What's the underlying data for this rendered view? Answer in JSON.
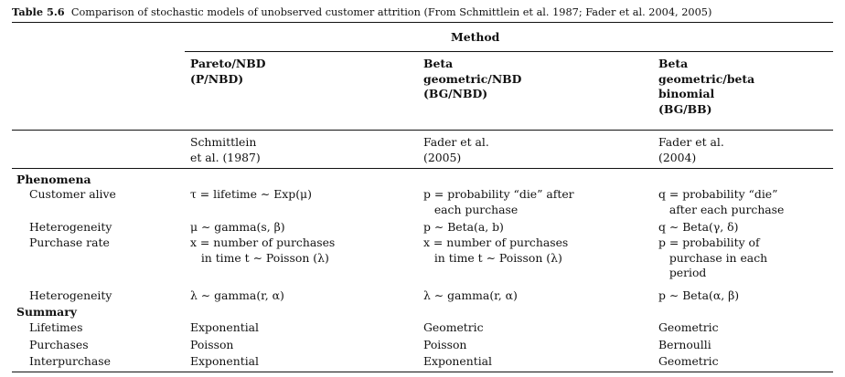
{
  "caption": {
    "label": "Table 5.6",
    "text": "Comparison of stochastic models of unobserved customer attrition (From Schmittlein et al. 1987; Fader et al. 2004, 2005)"
  },
  "header": {
    "method": "Method",
    "models": [
      {
        "name": "Pareto/NBD\n(P/NBD)",
        "source": "Schmittlein\net al. (1987)"
      },
      {
        "name": "Beta\ngeometric/NBD\n(BG/NBD)",
        "source": "Fader et al.\n(2005)"
      },
      {
        "name": "Beta\ngeometric/beta\nbinomial\n(BG/BB)",
        "source": "Fader et al.\n(2004)"
      }
    ]
  },
  "sections": [
    {
      "title": "Phenomena",
      "rows": [
        {
          "label": "Customer alive",
          "values": [
            "τ = lifetime ∼ Exp(μ)",
            "p = probability “die” after\n   each purchase",
            "q = probability “die”\n   after each purchase"
          ]
        },
        {
          "label": "Heterogeneity",
          "values": [
            "μ ∼ gamma(s, β)",
            "p ∼ Beta(a, b)",
            "q ∼ Beta(γ, δ)"
          ]
        },
        {
          "label": "Purchase rate",
          "values": [
            "x = number of purchases\n   in time t ∼ Poisson (λ)",
            "x = number of purchases\n   in time t ∼ Poisson (λ)",
            "p = probability of\n   purchase in each\n   period"
          ]
        },
        {
          "label": "Heterogeneity",
          "values": [
            "λ ∼ gamma(r, α)",
            "λ ∼ gamma(r, α)",
            "p ∼ Beta(α, β)"
          ]
        }
      ]
    },
    {
      "title": "Summary",
      "rows": [
        {
          "label": "Lifetimes",
          "values": [
            "Exponential",
            "Geometric",
            "Geometric"
          ]
        },
        {
          "label": "Purchases",
          "values": [
            "Poisson",
            "Poisson",
            "Bernoulli"
          ]
        },
        {
          "label": "Interpurchase",
          "values": [
            "Exponential",
            "Exponential",
            "Geometric"
          ]
        }
      ]
    }
  ]
}
